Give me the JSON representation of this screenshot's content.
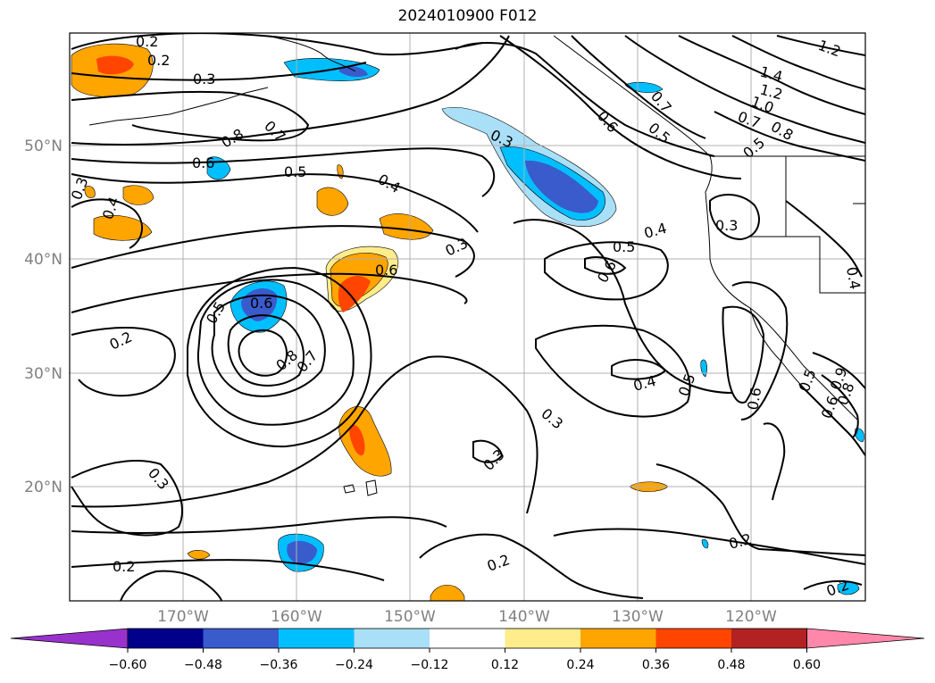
{
  "title": "2024010900 F012",
  "map": {
    "lon_range": [
      -180,
      -110
    ],
    "lat_range": [
      10,
      60
    ],
    "gridlines": true,
    "lat_labels": [
      "50°N",
      "40°N",
      "30°N",
      "20°N"
    ],
    "lon_labels": [
      "170°W",
      "160°W",
      "150°W",
      "140°W",
      "130°W",
      "120°W"
    ],
    "contour_labels": [
      "0.2",
      "0.2",
      "0.3",
      "0.7",
      "0.8",
      "0.6",
      "0.5",
      "0.4",
      "0.3",
      "0.4",
      "0.3",
      "0.6",
      "0.5",
      "0.6",
      "0.2",
      "0.8",
      "0.7",
      "0.3",
      "0.2",
      "0.2",
      "0.3",
      "0.3",
      "0.3",
      "0.6",
      "0.7",
      "0.5",
      "0.4",
      "0.6",
      "0.3",
      "0.4",
      "0.5",
      "0.6",
      "0.5",
      "0.6",
      "0.2",
      "0.2",
      "1.2",
      "1.4",
      "1.2",
      "1.0",
      "0.7",
      "0.8",
      "0.5",
      "0.4",
      "0.5",
      "0.9",
      "0.8"
    ]
  },
  "colorbar": {
    "ticks": [
      "−0.60",
      "−0.48",
      "−0.36",
      "−0.24",
      "−0.12",
      "0.12",
      "0.24",
      "0.36",
      "0.48",
      "0.60"
    ],
    "colors": [
      "#9932cc",
      "#00008b",
      "#3a5bcc",
      "#00bfff",
      "#aadff8",
      "#ffffff",
      "#ffec8b",
      "#ffa500",
      "#ff4500",
      "#b22222",
      "#ff88aa"
    ]
  }
}
